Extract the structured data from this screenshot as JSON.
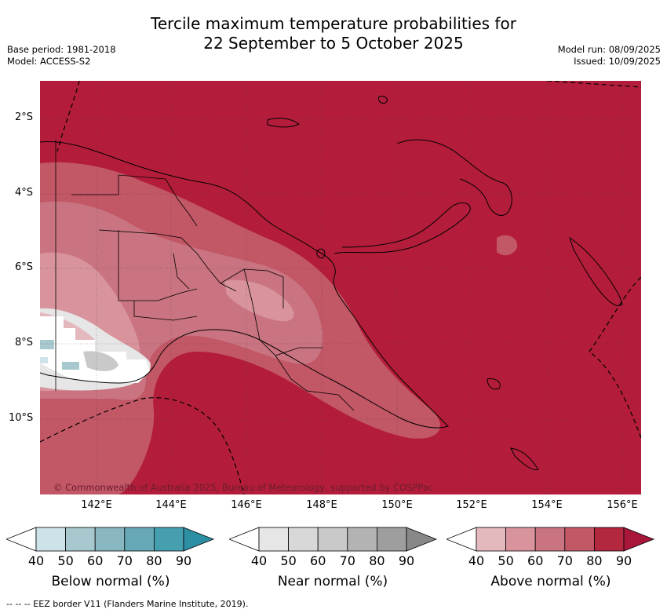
{
  "title_line1": "Tercile maximum temperature probabilities for",
  "title_line2": "22 September to 5 October 2025",
  "base_period": "Base period: 1981-2018",
  "model": "Model: ACCESS-S2",
  "model_run": "Model run: 08/09/2025",
  "issued": "Issued: 10/09/2025",
  "copyright": "© Commonwealth of Australia 2025, Bureau of Meteorology, supported by COSPPac",
  "lat_labels": [
    "2°S",
    "4°S",
    "6°S",
    "8°S",
    "10°S"
  ],
  "lon_labels": [
    "142°E",
    "144°E",
    "146°E",
    "148°E",
    "150°E",
    "152°E",
    "154°E",
    "156°E"
  ],
  "colorbars": {
    "below": {
      "label": "Below normal (%)",
      "ticks": [
        "40",
        "50",
        "60",
        "70",
        "80",
        "90"
      ],
      "colors": [
        "#cde3e9",
        "#a7c8ce",
        "#88b7c2",
        "#67a8b6",
        "#469faf",
        "#2d8fa3"
      ]
    },
    "near": {
      "label": "Near normal (%)",
      "ticks": [
        "40",
        "50",
        "60",
        "70",
        "80",
        "90"
      ],
      "colors": [
        "#e6e6e6",
        "#d8d8d8",
        "#c9c9c9",
        "#b3b3b3",
        "#9e9e9e",
        "#888888"
      ]
    },
    "above": {
      "label": "Above normal (%)",
      "ticks": [
        "40",
        "50",
        "60",
        "70",
        "80",
        "90"
      ],
      "colors": [
        "#e4b9be",
        "#d8939c",
        "#c97480",
        "#c25766",
        "#b3273f",
        "#a8173a"
      ]
    }
  },
  "footnote": "--  --  -- EEZ border V11 (Flanders Marine Institute, 2019).",
  "colors": {
    "dominant_above": "#b31d3b",
    "map_background": "#b31d3b"
  }
}
